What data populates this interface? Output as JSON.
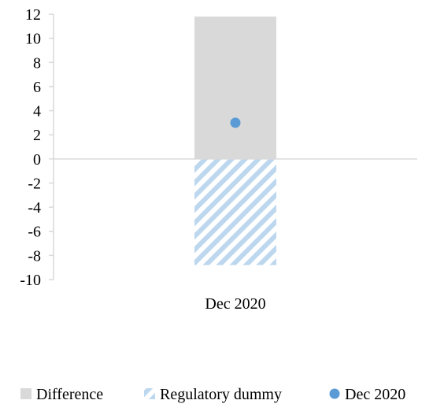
{
  "chart_data": {
    "type": "bar",
    "categories": [
      "Dec 2020"
    ],
    "series": [
      {
        "name": "Difference",
        "type": "bar",
        "values": [
          11.8
        ],
        "color": "#d9d9d9",
        "pattern": "solid"
      },
      {
        "name": "Regulatory dummy",
        "type": "bar",
        "values": [
          -8.8
        ],
        "color": "#bdd7ee",
        "pattern": "diagonal-stripes"
      },
      {
        "name": "Dec 2020",
        "type": "scatter",
        "values": [
          3.0
        ],
        "color": "#5b9bd5"
      }
    ],
    "yticks": [
      "12",
      "10",
      "8",
      "6",
      "4",
      "2",
      "0",
      "-2",
      "-4",
      "-6",
      "-8",
      "-10"
    ],
    "ylim": [
      -10,
      12
    ],
    "legend_position": "bottom",
    "grid": false
  }
}
